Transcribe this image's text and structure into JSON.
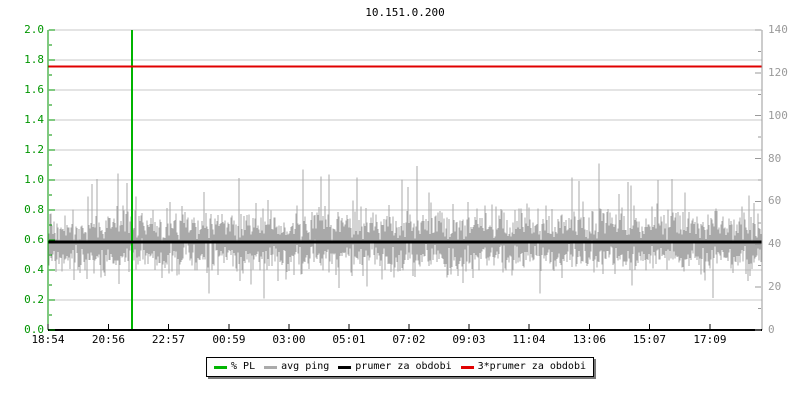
{
  "chart_data": {
    "type": "line",
    "title": "10.151.0.200",
    "x_axis": {
      "tick_labels": [
        "18:54",
        "20:56",
        "22:57",
        "00:59",
        "03:00",
        "05:01",
        "07:02",
        "09:03",
        "11:04",
        "13:06",
        "15:07",
        "17:09"
      ],
      "color": "#000000",
      "span_minutes": 1440
    },
    "left_axis": {
      "series": "% PL",
      "tick_labels": [
        "2.0",
        "1.8",
        "1.6",
        "1.4",
        "1.2",
        "1.0",
        "0.8",
        "0.6",
        "0.4",
        "0.2",
        "0.0"
      ],
      "min": 0.0,
      "max": 2.0,
      "color": "#009600"
    },
    "right_axis": {
      "series": "avg ping (ms)",
      "tick_labels": [
        "140",
        "120",
        "100",
        "80",
        "60",
        "40",
        "20",
        "0"
      ],
      "min": 0,
      "max": 140,
      "color": "#9a9a9a"
    },
    "grid": {
      "horizontal_step_left_scale": 0.2,
      "color": "#c9c9c9",
      "vertical_gridlines": false
    },
    "series": [
      {
        "name": "% PL",
        "color": "#00b400",
        "style": "vertical_spike",
        "spike_x_time": "21:44",
        "spike_full_height": true
      },
      {
        "name": "avg ping",
        "color": "#a9a9a9",
        "style": "noise",
        "mean_ms": 41,
        "typical_low_ms": 27,
        "typical_high_ms": 57,
        "min_ms": 14,
        "max_ms": 79
      },
      {
        "name": "prumer za obdobi",
        "color": "#000000",
        "style": "hline",
        "value_ms": 41
      },
      {
        "name": "3*prumer za obdobi",
        "color": "#e00000",
        "style": "hline",
        "value_ms": 123
      }
    ],
    "legend": {
      "position": "bottom-center",
      "items": [
        {
          "label": "% PL",
          "color": "#00b400"
        },
        {
          "label": "avg ping",
          "color": "#a9a9a9"
        },
        {
          "label": "prumer za obdobi",
          "color": "#000000"
        },
        {
          "label": "3*prumer za obdobi",
          "color": "#e00000"
        }
      ]
    }
  }
}
